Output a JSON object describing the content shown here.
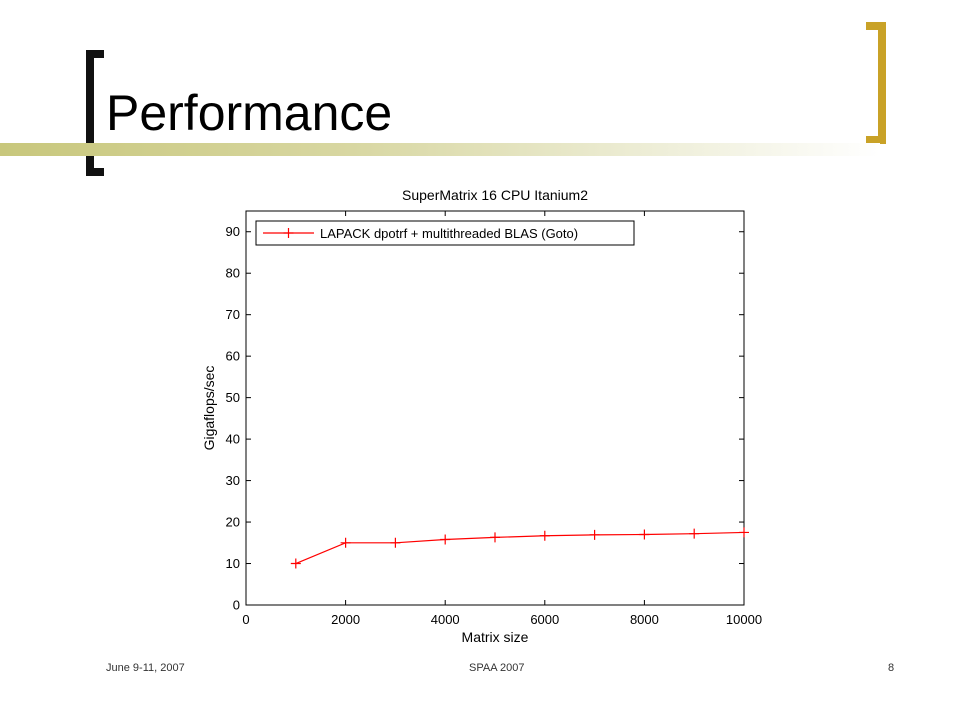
{
  "slide": {
    "title": "Performance",
    "footer_left": "June 9-11, 2007",
    "footer_center": "SPAA 2007",
    "footer_right": "8",
    "colors": {
      "bracket_left": "#111111",
      "bracket_right": "#c9a227",
      "accent_bar": "#c8c77c"
    }
  },
  "chart_data": {
    "type": "line",
    "title": "SuperMatrix 16 CPU Itanium2",
    "xlabel": "Matrix size",
    "ylabel": "Gigaflops/sec",
    "xlim": [
      0,
      10000
    ],
    "ylim": [
      0,
      95
    ],
    "xticks": [
      0,
      2000,
      4000,
      6000,
      8000,
      10000
    ],
    "yticks": [
      0,
      10,
      20,
      30,
      40,
      50,
      60,
      70,
      80,
      90
    ],
    "grid": false,
    "legend_position": "top-left",
    "series": [
      {
        "name": "LAPACK dpotrf + multithreaded BLAS (Goto)",
        "color": "#ff0000",
        "marker": "plus",
        "x": [
          1000,
          2000,
          3000,
          4000,
          5000,
          6000,
          7000,
          8000,
          9000,
          10000
        ],
        "y": [
          10,
          15,
          15,
          15.8,
          16.3,
          16.7,
          16.9,
          17.0,
          17.2,
          17.5
        ]
      }
    ]
  }
}
